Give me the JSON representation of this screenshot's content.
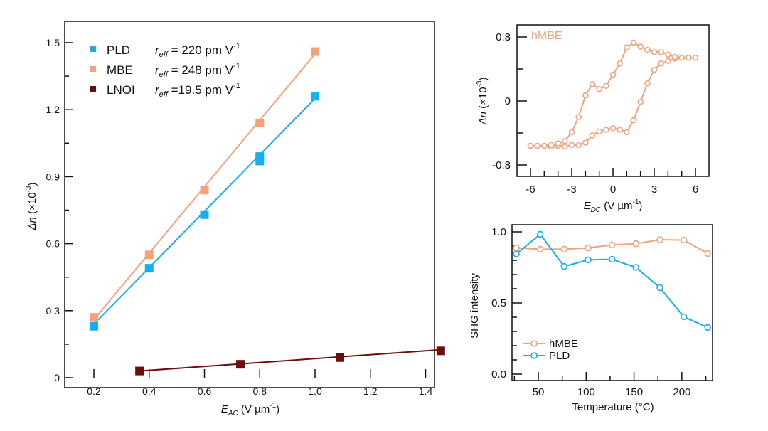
{
  "colors": {
    "pld": "#1AAEEF",
    "mbe": "#F4A27C",
    "lnoi": "#6B0E0E",
    "axis": "#111111"
  },
  "chart_data": [
    {
      "type": "scatter",
      "panel": "main",
      "xlabel": {
        "var": "E",
        "sub": "AC",
        "unit": " (V µm",
        "exp": "-1",
        "close": ")"
      },
      "ylabel": {
        "var": "Δn",
        "unit": "  (×10",
        "exp": "-3",
        "close": ")"
      },
      "xlim": [
        0.1,
        1.5
      ],
      "ylim": [
        0,
        1.5
      ],
      "xticks": [
        "0.2",
        "0.4",
        "0.6",
        "0.8",
        "1.0",
        "1.2",
        "1.4"
      ],
      "yticks": [
        "0",
        "0.3",
        "0.6",
        "0.9",
        "1.2",
        "1.5"
      ],
      "legend_position": "top-left",
      "series": [
        {
          "name": "PLD",
          "color_key": "pld",
          "r": "r",
          "r_sub": "eff",
          "r_text": " = 220 pm V",
          "r_exp": "-1",
          "x": [
            0.2,
            0.4,
            0.6,
            0.8,
            0.8,
            1.0
          ],
          "y": [
            0.23,
            0.49,
            0.73,
            0.97,
            0.99,
            1.26
          ],
          "fit_line": [
            [
              0.2,
              0.24
            ],
            [
              1.0,
              1.25
            ]
          ]
        },
        {
          "name": "MBE",
          "color_key": "mbe",
          "r": "r",
          "r_sub": "eff",
          "r_text": " = 248 pm V",
          "r_exp": "-1",
          "x": [
            0.2,
            0.4,
            0.6,
            0.8,
            1.0
          ],
          "y": [
            0.27,
            0.55,
            0.84,
            1.14,
            1.46
          ],
          "fit_line": [
            [
              0.2,
              0.26
            ],
            [
              1.0,
              1.45
            ]
          ]
        },
        {
          "name": "LNOI",
          "color_key": "lnoi",
          "r": "r",
          "r_sub": "eff",
          "r_text": "  =19.5 pm V",
          "r_exp": "-1",
          "x": [
            0.365,
            0.73,
            1.09,
            1.455
          ],
          "y": [
            0.03,
            0.06,
            0.09,
            0.12
          ],
          "fit_line": [
            [
              0.365,
              0.03
            ],
            [
              1.455,
              0.125
            ]
          ]
        }
      ]
    },
    {
      "type": "line",
      "panel": "hysteresis",
      "annotation": "hMBE",
      "xlabel": {
        "var": "E",
        "sub": "DC",
        "unit": " (V µm",
        "exp": "-1",
        "close": ")"
      },
      "ylabel": {
        "var": "Δn",
        "unit": "  (×10",
        "exp": "-3",
        "close": ")"
      },
      "xlim": [
        -6.6,
        6.6
      ],
      "ylim": [
        -0.9,
        0.9
      ],
      "xticks": [
        "-6",
        "-3",
        "0",
        "3",
        "6"
      ],
      "yticks": [
        "-0.8",
        "0",
        "0.8"
      ],
      "series": [
        {
          "name": "hMBE",
          "color_key": "mbe",
          "x": [
            -6,
            -5.5,
            -5,
            -4.5,
            -4,
            -3.5,
            -3,
            -2.5,
            -2,
            -1.5,
            -1,
            -0.5,
            0,
            0.5,
            1,
            1.5,
            2,
            2.5,
            3,
            3.5,
            4,
            4.5,
            5,
            5.5,
            6,
            5.5,
            5,
            4.5,
            4,
            3.5,
            3,
            2.5,
            2,
            1.5,
            1,
            0.5,
            0,
            -0.5,
            -1,
            -1.5,
            -2,
            -2.5,
            -3,
            -3.5,
            -4,
            -4.5,
            -5,
            -5.5,
            -6
          ],
          "y": [
            -0.56,
            -0.56,
            -0.56,
            -0.57,
            -0.56,
            -0.57,
            -0.55,
            -0.55,
            -0.52,
            -0.43,
            -0.38,
            -0.36,
            -0.34,
            -0.36,
            -0.39,
            -0.24,
            -0.01,
            0.22,
            0.39,
            0.47,
            0.5,
            0.53,
            0.54,
            0.54,
            0.54,
            0.54,
            0.54,
            0.55,
            0.58,
            0.61,
            0.61,
            0.64,
            0.68,
            0.73,
            0.67,
            0.47,
            0.33,
            0.19,
            0.15,
            0.21,
            0.07,
            -0.2,
            -0.39,
            -0.5,
            -0.53,
            -0.55,
            -0.56,
            -0.56,
            -0.56
          ]
        }
      ]
    },
    {
      "type": "line",
      "panel": "shg",
      "xlabel": "Temperature (°C)",
      "ylabel": "SHG intensity",
      "xlim": [
        22,
        232
      ],
      "ylim": [
        -0.05,
        1.05
      ],
      "xticks": [
        "50",
        "100",
        "150",
        "200"
      ],
      "yticks": [
        "0.0",
        "0.5",
        "1.0"
      ],
      "legend_position": "bottom-left",
      "x": [
        27,
        52,
        77,
        102,
        127,
        152,
        177,
        202,
        227
      ],
      "series": [
        {
          "name": "hMBE",
          "color_key": "mbe",
          "values": [
            0.887,
            0.878,
            0.878,
            0.887,
            0.908,
            0.917,
            0.945,
            0.942,
            0.848
          ]
        },
        {
          "name": "PLD",
          "color_key": "pld",
          "values": [
            0.845,
            0.983,
            0.757,
            0.803,
            0.807,
            0.75,
            0.608,
            0.403,
            0.328
          ]
        }
      ]
    }
  ]
}
